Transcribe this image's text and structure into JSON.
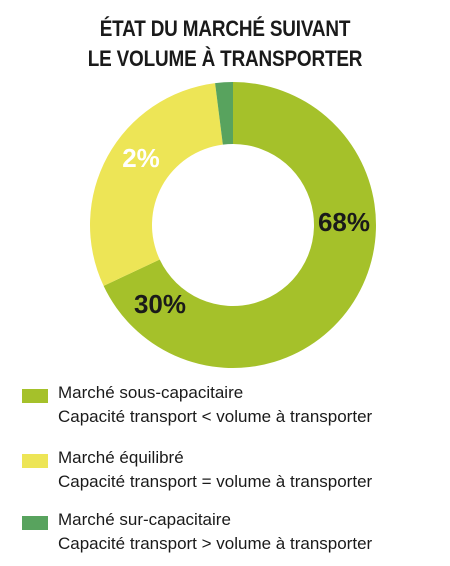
{
  "title": {
    "line1": "ÉTAT DU MARCHÉ SUIVANT",
    "line2": "LE VOLUME À TRANSPORTER"
  },
  "chart_data": {
    "type": "pie",
    "title": "ÉTAT DU MARCHÉ SUIVANT LE VOLUME À TRANSPORTER",
    "slices": [
      {
        "name": "Marché sous-capacitaire",
        "description": "Capacité transport < volume à transporter",
        "value": 68,
        "label": "68%",
        "color": "#a5c12a"
      },
      {
        "name": "Marché équilibré",
        "description": "Capacité transport = volume à transporter",
        "value": 30,
        "label": "30%",
        "color": "#ede556"
      },
      {
        "name": "Marché sur-capacitaire",
        "description": "Capacité transport > volume à transporter",
        "value": 2,
        "label": "2%",
        "color": "#58a35e"
      }
    ],
    "legend": "bottom"
  }
}
